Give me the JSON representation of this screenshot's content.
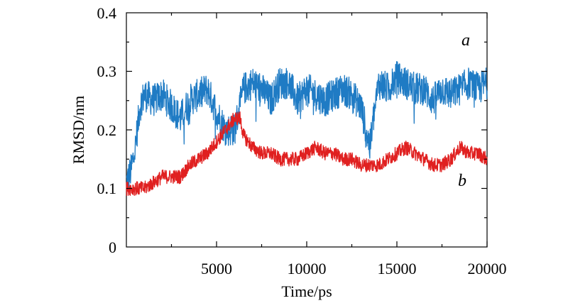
{
  "chart_data": {
    "type": "line",
    "title": "",
    "xlabel": "Time/ps",
    "ylabel": "RMSD/nm",
    "xlim": [
      0,
      20000
    ],
    "ylim": [
      0,
      0.4
    ],
    "x_tick_labels": [
      "5000",
      "10000",
      "15000",
      "20000"
    ],
    "y_tick_labels": [
      "0",
      "0.1",
      "0.2",
      "0.3",
      "0.4"
    ],
    "grid": false,
    "series": [
      {
        "name": "a",
        "color": "#1f7bc4",
        "x": [
          0,
          250,
          500,
          750,
          1000,
          1500,
          2000,
          2500,
          3000,
          3500,
          4000,
          4500,
          5000,
          5500,
          6000,
          6500,
          7000,
          7500,
          8000,
          8500,
          9000,
          9500,
          10000,
          10500,
          11000,
          11500,
          12000,
          12500,
          13000,
          13300,
          13500,
          13700,
          14000,
          14500,
          15000,
          15500,
          16000,
          16500,
          17000,
          17500,
          18000,
          18500,
          19000,
          19500,
          20000
        ],
        "values": [
          0.11,
          0.13,
          0.17,
          0.24,
          0.26,
          0.25,
          0.26,
          0.24,
          0.22,
          0.25,
          0.26,
          0.27,
          0.23,
          0.2,
          0.2,
          0.27,
          0.28,
          0.27,
          0.25,
          0.28,
          0.28,
          0.25,
          0.27,
          0.26,
          0.25,
          0.26,
          0.27,
          0.26,
          0.24,
          0.2,
          0.17,
          0.22,
          0.28,
          0.27,
          0.29,
          0.28,
          0.27,
          0.27,
          0.25,
          0.27,
          0.26,
          0.27,
          0.28,
          0.27,
          0.28
        ]
      },
      {
        "name": "b",
        "color": "#e02020",
        "x": [
          0,
          500,
          1000,
          1500,
          2000,
          2500,
          3000,
          3500,
          4000,
          4500,
          5000,
          5500,
          6000,
          6300,
          6500,
          7000,
          7500,
          8000,
          8500,
          9000,
          9500,
          10000,
          10500,
          11000,
          11500,
          12000,
          12500,
          13000,
          13500,
          14000,
          14500,
          15000,
          15500,
          16000,
          16500,
          17000,
          17500,
          18000,
          18500,
          19000,
          19500,
          20000
        ],
        "values": [
          0.1,
          0.1,
          0.1,
          0.11,
          0.12,
          0.12,
          0.12,
          0.14,
          0.15,
          0.16,
          0.18,
          0.2,
          0.22,
          0.22,
          0.19,
          0.17,
          0.16,
          0.16,
          0.15,
          0.15,
          0.15,
          0.16,
          0.17,
          0.16,
          0.16,
          0.15,
          0.15,
          0.14,
          0.14,
          0.14,
          0.15,
          0.16,
          0.17,
          0.16,
          0.15,
          0.14,
          0.14,
          0.15,
          0.17,
          0.16,
          0.16,
          0.15
        ]
      }
    ],
    "annotations": [
      {
        "text": "a",
        "series": "a"
      },
      {
        "text": "b",
        "series": "b"
      }
    ]
  }
}
